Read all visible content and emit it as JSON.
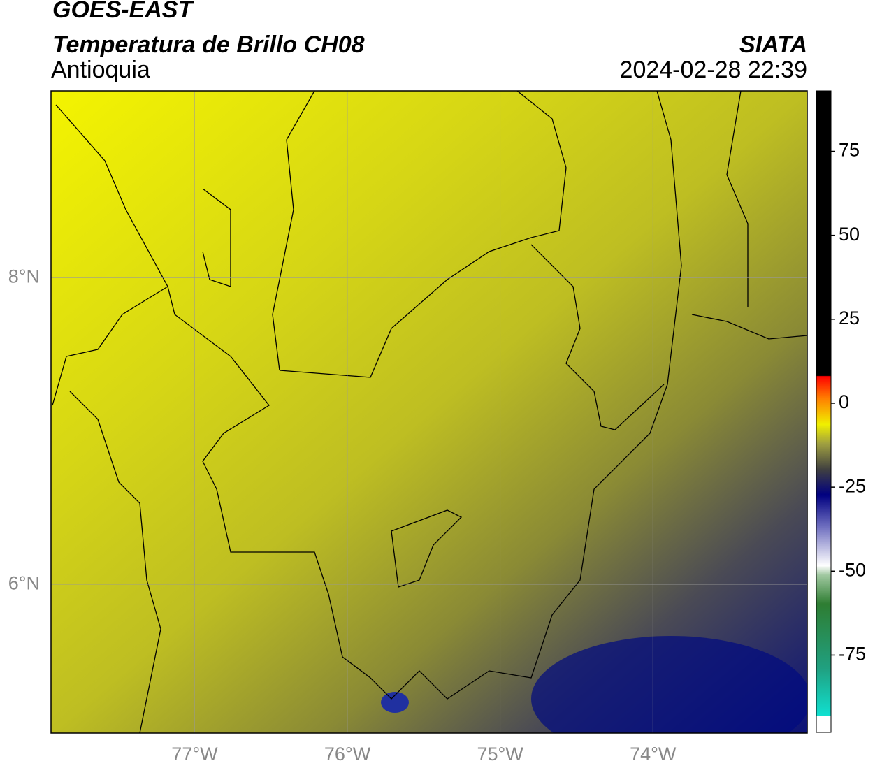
{
  "header": {
    "title": "GOES-EAST",
    "subtitle": "Temperatura de Brillo CH08",
    "region": "Antioquia",
    "source": "SIATA",
    "timestamp": "2024-02-28 22:39"
  },
  "map": {
    "xlim": [
      -77.94,
      -72.99
    ],
    "ylim": [
      5.03,
      9.22
    ],
    "xticks": [
      {
        "value": -77,
        "label": "77°W"
      },
      {
        "value": -76,
        "label": "76°W"
      },
      {
        "value": -75,
        "label": "75°W"
      },
      {
        "value": -74,
        "label": "74°W"
      }
    ],
    "yticks": [
      {
        "value": 6,
        "label": "6°N"
      },
      {
        "value": 8,
        "label": "8°N"
      }
    ]
  },
  "colorbar": {
    "lim": [
      -98,
      93
    ],
    "ticks": [
      75,
      50,
      25,
      0,
      -25,
      -50,
      -75
    ]
  }
}
